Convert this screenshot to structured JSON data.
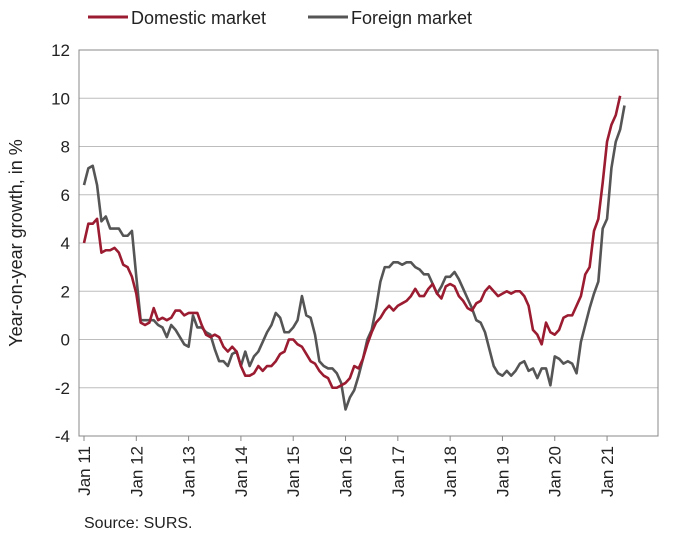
{
  "chart_data": {
    "type": "line",
    "title": "",
    "xlabel": "",
    "ylabel": "Year-on-year growth, in %",
    "ylim": [
      -4,
      12
    ],
    "yticks": [
      -4,
      -2,
      0,
      2,
      4,
      6,
      8,
      10,
      12
    ],
    "x_start": "Jan 11",
    "x_tick_labels": [
      "Jan 11",
      "Jan 12",
      "Jan 13",
      "Jan 14",
      "Jan 15",
      "Jan 16",
      "Jan 17",
      "Jan 18",
      "Jan 19",
      "Jan 20",
      "Jan 21"
    ],
    "grid": true,
    "legend": "top-left",
    "series": [
      {
        "name": "Domestic market",
        "color": "#9b1b30",
        "values": [
          4.0,
          4.8,
          4.8,
          5.0,
          3.6,
          3.7,
          3.7,
          3.8,
          3.6,
          3.1,
          3.0,
          2.6,
          1.9,
          0.7,
          0.6,
          0.7,
          1.3,
          0.8,
          0.9,
          0.8,
          0.9,
          1.2,
          1.2,
          1.0,
          1.1,
          1.1,
          1.1,
          0.6,
          0.2,
          0.1,
          0.2,
          0.1,
          -0.3,
          -0.5,
          -0.3,
          -0.5,
          -1.1,
          -1.5,
          -1.5,
          -1.4,
          -1.1,
          -1.3,
          -1.1,
          -1.1,
          -0.9,
          -0.6,
          -0.5,
          0.0,
          0.0,
          -0.2,
          -0.3,
          -0.6,
          -0.9,
          -1.0,
          -1.3,
          -1.5,
          -1.6,
          -2.0,
          -2.0,
          -1.9,
          -1.8,
          -1.6,
          -1.1,
          -1.2,
          -0.8,
          -0.2,
          0.3,
          0.7,
          0.9,
          1.2,
          1.4,
          1.2,
          1.4,
          1.5,
          1.6,
          1.8,
          2.1,
          1.8,
          1.8,
          2.1,
          2.3,
          1.9,
          1.7,
          2.2,
          2.3,
          2.2,
          1.8,
          1.6,
          1.3,
          1.2,
          1.5,
          1.6,
          2.0,
          2.2,
          2.0,
          1.8,
          1.9,
          2.0,
          1.9,
          2.0,
          2.0,
          1.8,
          1.4,
          0.4,
          0.2,
          -0.2,
          0.7,
          0.3,
          0.2,
          0.4,
          0.9,
          1.0,
          1.0,
          1.4,
          1.8,
          2.7,
          3.0,
          4.5,
          5.0,
          6.5,
          8.2,
          8.9,
          9.3,
          10.1
        ]
      },
      {
        "name": "Foreign market",
        "color": "#555555",
        "values": [
          6.4,
          7.1,
          7.2,
          6.4,
          4.9,
          5.1,
          4.6,
          4.6,
          4.6,
          4.3,
          4.3,
          4.5,
          2.6,
          0.8,
          0.8,
          0.8,
          0.8,
          0.6,
          0.5,
          0.1,
          0.6,
          0.4,
          0.1,
          -0.2,
          -0.3,
          1.0,
          0.5,
          0.5,
          0.3,
          0.2,
          -0.4,
          -0.9,
          -0.9,
          -1.1,
          -0.6,
          -0.5,
          -1.1,
          -0.5,
          -1.1,
          -0.7,
          -0.5,
          -0.1,
          0.3,
          0.6,
          1.1,
          0.9,
          0.3,
          0.3,
          0.5,
          0.8,
          1.8,
          1.0,
          0.9,
          0.2,
          -0.9,
          -1.1,
          -1.2,
          -1.2,
          -1.4,
          -1.8,
          -2.9,
          -2.4,
          -2.1,
          -1.5,
          -0.8,
          0.0,
          0.4,
          1.3,
          2.4,
          3.0,
          3.0,
          3.2,
          3.2,
          3.1,
          3.2,
          3.2,
          3.0,
          2.9,
          2.7,
          2.7,
          2.3,
          1.9,
          2.2,
          2.6,
          2.6,
          2.8,
          2.5,
          2.1,
          1.7,
          1.3,
          0.8,
          0.7,
          0.3,
          -0.4,
          -1.1,
          -1.4,
          -1.5,
          -1.3,
          -1.5,
          -1.3,
          -1.0,
          -0.9,
          -1.3,
          -1.2,
          -1.6,
          -1.2,
          -1.2,
          -1.9,
          -0.7,
          -0.8,
          -1.0,
          -0.9,
          -1.0,
          -1.4,
          -0.1,
          0.6,
          1.3,
          1.9,
          2.4,
          4.6,
          5.0,
          7.1,
          8.2,
          8.7,
          9.7
        ]
      }
    ]
  },
  "source": "Source: SURS."
}
